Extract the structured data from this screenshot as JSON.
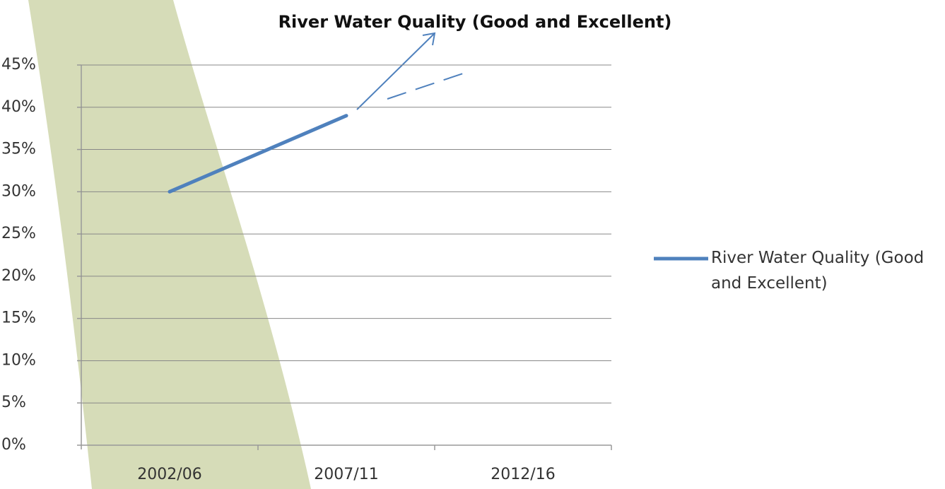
{
  "chart_data": {
    "type": "line",
    "title": "River Water Quality (Good and Excellent)",
    "categories": [
      "2002/06",
      "2007/11",
      "2012/16"
    ],
    "series": [
      {
        "name": "River Water Quality (Good and Excellent)",
        "color": "#4f81bd",
        "values": [
          30,
          39,
          null
        ]
      }
    ],
    "ylim": [
      0,
      45
    ],
    "yticks": [
      {
        "value": 0,
        "label": "0%"
      },
      {
        "value": 5,
        "label": "5%"
      },
      {
        "value": 10,
        "label": "10%"
      },
      {
        "value": 15,
        "label": "15%"
      },
      {
        "value": 20,
        "label": "20%"
      },
      {
        "value": 25,
        "label": "25%"
      },
      {
        "value": 30,
        "label": "30%"
      },
      {
        "value": 35,
        "label": "35%"
      },
      {
        "value": 40,
        "label": "40%"
      },
      {
        "value": 45,
        "label": "45%"
      }
    ],
    "grid": true
  }
}
